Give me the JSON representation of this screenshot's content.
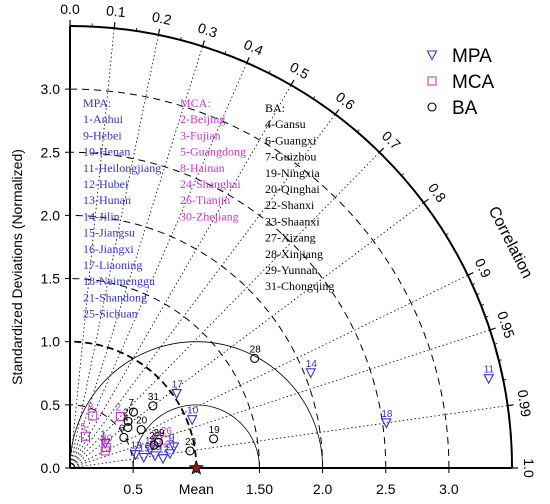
{
  "chart_data": {
    "type": "scatter",
    "subtype": "taylor-diagram",
    "ylabel": "Standardized Deviations (Normalized)",
    "correlation_label": "Correlation",
    "xaxis_labels": [
      "0.5",
      "Mean",
      "1.50",
      "2.0",
      "2.5",
      "3.0"
    ],
    "sd_range": [
      0,
      3.5
    ],
    "ref_point": {
      "sd": 1.0,
      "corr": 1.0
    },
    "axis_ticks": {
      "vertical": [
        "0.0",
        "0.5",
        "1.0",
        "1.5",
        "2.0",
        "2.5",
        "3.0"
      ],
      "horizontal": [
        "0.0",
        "0.5",
        "Mean",
        "1.50",
        "2.0",
        "2.5",
        "3.0"
      ]
    },
    "correlation_ticks": [
      "0.0",
      "0.1",
      "0.2",
      "0.3",
      "0.4",
      "0.5",
      "0.6",
      "0.7",
      "0.8",
      "0.9",
      "0.95",
      "0.99",
      "1.0"
    ],
    "legend": [
      {
        "name": "MPA",
        "marker": "triangle-down",
        "color": "#3333cc"
      },
      {
        "name": "MCA",
        "marker": "square",
        "color": "#cc33cc"
      },
      {
        "name": "BA",
        "marker": "circle",
        "color": "#000000"
      }
    ],
    "group_lists": {
      "mpa": {
        "header": "MPA:",
        "items": [
          "1-Anhui",
          "9-Hebei",
          "10-Henan",
          "11-Heilongjiang",
          "12-Hubei",
          "13-Hunan",
          "14-Jilin",
          "15-Jiangsu",
          "16-Jiangxi",
          "17-Liaoning",
          "18-Neimenggu",
          "21-Shandong",
          "25-Sichuan"
        ]
      },
      "mca": {
        "header": "MCA:",
        "items": [
          "2-Beijing",
          "3-Fujian",
          "5-Guangdong",
          "8-Hainan",
          "24-Shanghai",
          "26-Tianjin",
          "30-Zhejiang"
        ]
      },
      "ba": {
        "header": "BA:",
        "items": [
          "4-Gansu",
          "6-Guangxi",
          "7-Guizhou",
          "19-Ningxia",
          "20-Qinghai",
          "22-Shanxi",
          "23-Shaanxi",
          "27-Xizang",
          "28-Xinjiang",
          "29-Yunnan",
          "31-Chongqing"
        ]
      }
    },
    "series": [
      {
        "name": "MPA",
        "points": [
          {
            "id": "1",
            "sd": 0.34,
            "corr": 0.82
          },
          {
            "id": "9",
            "sd": 0.84,
            "corr": 0.98
          },
          {
            "id": "10",
            "sd": 1.04,
            "corr": 0.93
          },
          {
            "id": "11",
            "sd": 3.39,
            "corr": 0.978
          },
          {
            "id": "12",
            "sd": 0.74,
            "corr": 0.995
          },
          {
            "id": "13",
            "sd": 0.53,
            "corr": 0.98
          },
          {
            "id": "14",
            "sd": 2.05,
            "corr": 0.93
          },
          {
            "id": "15",
            "sd": 0.59,
            "corr": 0.99
          },
          {
            "id": "16",
            "sd": 0.65,
            "corr": 0.975
          },
          {
            "id": "17",
            "sd": 1.03,
            "corr": 0.82
          },
          {
            "id": "18",
            "sd": 2.53,
            "corr": 0.99
          },
          {
            "id": "21",
            "sd": 0.8,
            "corr": 0.99
          },
          {
            "id": "25",
            "sd": 0.68,
            "corr": 0.99
          }
        ]
      },
      {
        "name": "MCA",
        "points": [
          {
            "id": "2",
            "sd": 0.57,
            "corr": 0.7
          },
          {
            "id": "3",
            "sd": 0.31,
            "corr": 0.9
          },
          {
            "id": "5",
            "sd": 0.28,
            "corr": 0.44
          },
          {
            "id": "8",
            "sd": 0.45,
            "corr": 0.4
          },
          {
            "id": "24",
            "sd": 0.71,
            "corr": 0.96
          },
          {
            "id": "26",
            "sd": 0.79,
            "corr": 0.96
          },
          {
            "id": "30",
            "sd": 0.33,
            "corr": 0.87
          }
        ]
      },
      {
        "name": "BA",
        "points": [
          {
            "id": "4",
            "sd": 0.56,
            "corr": 0.82
          },
          {
            "id": "6",
            "sd": 0.49,
            "corr": 0.87
          },
          {
            "id": "7",
            "sd": 0.67,
            "corr": 0.75
          },
          {
            "id": "19",
            "sd": 1.16,
            "corr": 0.98
          },
          {
            "id": "20",
            "sd": 0.64,
            "corr": 0.88
          },
          {
            "id": "22",
            "sd": 0.69,
            "corr": 0.965
          },
          {
            "id": "23",
            "sd": 0.96,
            "corr": 0.99
          },
          {
            "id": "27",
            "sd": 0.59,
            "corr": 0.78
          },
          {
            "id": "28",
            "sd": 1.7,
            "corr": 0.86
          },
          {
            "id": "29",
            "sd": 0.73,
            "corr": 0.96
          },
          {
            "id": "31",
            "sd": 0.82,
            "corr": 0.8
          }
        ]
      }
    ]
  }
}
